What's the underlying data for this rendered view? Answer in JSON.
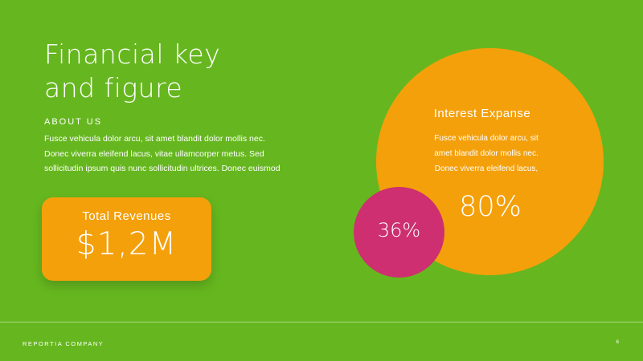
{
  "slide": {
    "title_lines": [
      "Financial key",
      "and figure"
    ],
    "about": {
      "label": "ABOUT US",
      "text_lines": [
        "Fusce vehicula dolor arcu, sit amet blandit dolor mollis nec.",
        "Donec viverra eleifend lacus, vitae ullamcorper metus. Sed",
        "sollicitudin ipsum quis nunc sollicitudin ultrices. Donec euismod"
      ]
    },
    "revenue": {
      "label": "Total Revenues",
      "value": "$1,2M"
    },
    "interest": {
      "title": "Interest Expanse",
      "text_lines": [
        "Fusce vehicula dolor arcu, sit",
        "amet blandit dolor mollis nec.",
        "Donec viverra eleifend lacus,"
      ],
      "percent": "80%"
    },
    "secondary_percent": "36%",
    "footer": {
      "company": "REPORTIA COMPANY",
      "page_number": "6"
    }
  },
  "colors": {
    "background": "#66b71f",
    "orange": "#f4a00b",
    "pink": "#cd2f70",
    "text": "#ffffff"
  }
}
